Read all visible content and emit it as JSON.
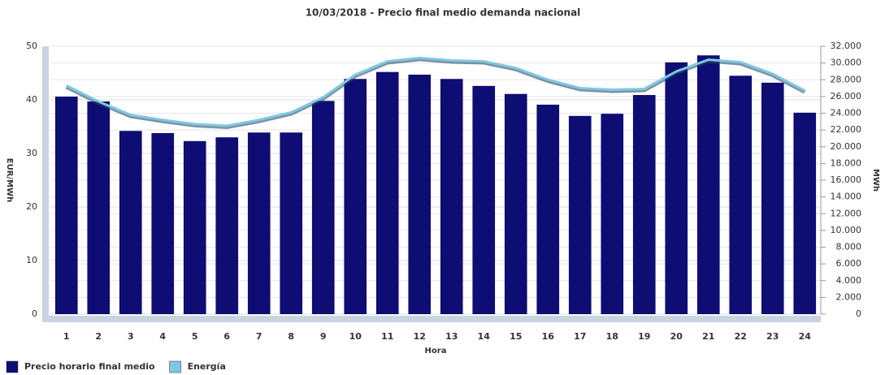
{
  "chart_data": {
    "type": "bar",
    "title": "10/03/2018 - Precio final medio demanda nacional",
    "x_label": "Hora",
    "y_label": "EUR/MWh",
    "y2_label": "MWh",
    "categories": [
      "1",
      "2",
      "3",
      "4",
      "5",
      "6",
      "7",
      "8",
      "9",
      "10",
      "11",
      "12",
      "13",
      "14",
      "15",
      "16",
      "17",
      "18",
      "19",
      "20",
      "21",
      "22",
      "23",
      "24"
    ],
    "series": [
      {
        "name": "Precio horario final medio",
        "color": "#0d0d73",
        "type": "bar",
        "values": [
          40.6,
          39.7,
          34.2,
          33.8,
          32.3,
          33.0,
          33.9,
          33.9,
          39.8,
          43.9,
          45.2,
          44.7,
          43.9,
          42.6,
          41.1,
          39.1,
          37.0,
          37.4,
          40.9,
          47.0,
          48.3,
          44.5,
          43.2,
          37.6
        ]
      },
      {
        "name": "Energía",
        "color": "#7ec8e3",
        "type": "line",
        "axis": "y2",
        "values": [
          27300,
          25400,
          23800,
          23200,
          22700,
          22500,
          23200,
          24100,
          25900,
          28600,
          30200,
          30600,
          30300,
          30200,
          29400,
          28000,
          27000,
          26800,
          26900,
          29000,
          30400,
          30100,
          28700,
          26700
        ]
      }
    ],
    "ylim": [
      0,
      50
    ],
    "yticks": [
      0,
      10,
      20,
      30,
      40,
      50
    ],
    "y2lim": [
      0,
      32000
    ],
    "y2ticks": [
      0,
      {
        "value": 2000,
        "label": "2.000"
      },
      {
        "value": 4000,
        "label": "4.000"
      },
      {
        "value": 6000,
        "label": "6.000"
      },
      {
        "value": 8000,
        "label": "8.000"
      },
      {
        "value": 10000,
        "label": "10.000"
      },
      {
        "value": 12000,
        "label": "12.000"
      },
      {
        "value": 14000,
        "label": "14.000"
      },
      {
        "value": 16000,
        "label": "16.000"
      },
      {
        "value": 18000,
        "label": "18.000"
      },
      {
        "value": 20000,
        "label": "20.000"
      },
      {
        "value": 22000,
        "label": "22.000"
      },
      {
        "value": 24000,
        "label": "24.000"
      },
      {
        "value": 26000,
        "label": "26.000"
      },
      {
        "value": 28000,
        "label": "28.000"
      },
      {
        "value": 30000,
        "label": "30.000"
      },
      {
        "value": 32000,
        "label": "32.000"
      }
    ],
    "grid": true,
    "legend": "bottom-left"
  }
}
